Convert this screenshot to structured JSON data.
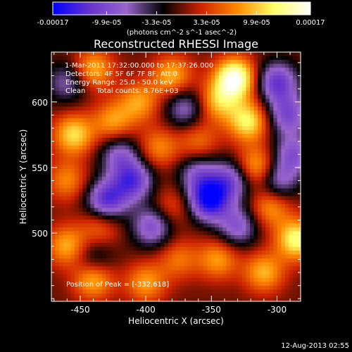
{
  "chart_data": {
    "type": "heatmap",
    "title": "Reconstructed RHESSI Image",
    "xlabel": "Heliocentric X (arcsec)",
    "ylabel": "Heliocentric Y (arcsec)",
    "xlim": [
      -472,
      -282
    ],
    "ylim": [
      448,
      638
    ],
    "xticks": [
      -450,
      -400,
      -350,
      -300
    ],
    "yticks": [
      500,
      550,
      600
    ],
    "xtick_labels": [
      "-450",
      "-400",
      "-350",
      "-300"
    ],
    "ytick_labels": [
      "500",
      "550",
      "600"
    ],
    "colorbar": {
      "range": [
        -0.00017,
        0.00017
      ],
      "ticks": [
        -0.00017,
        -9.9e-05,
        -3.3e-05,
        3.3e-05,
        9.9e-05,
        0.00017
      ],
      "tick_labels": [
        "-0.00017",
        "-9.9e-05",
        "-3.3e-05",
        "3.3e-05",
        "9.9e-05",
        "0.00017"
      ],
      "unit_label": "(photons cm^-2 s^-1 asec^-2)",
      "colormap": [
        "#0000ff",
        "#6633cc",
        "#9966cc",
        "#000000",
        "#cc2200",
        "#ff8800",
        "#ffff66",
        "#ffffff"
      ]
    },
    "annotations": {
      "time_range": "1-Mar-2011 17:32:00.000 to 17:37:26.000",
      "detectors": "Detectors: 4F 5F 6F 7F 8F, Att 0",
      "energy_range": "Energy Range: 25.0 - 50.0 keV",
      "clean_counts": "Clean     Total counts: 8.76E+03",
      "peak": "Position of Peak = [-332,618]"
    },
    "peak_position": [
      -332,
      618
    ],
    "blobs": [
      {
        "x": -332,
        "y": 618,
        "value": 0.00017
      },
      {
        "x": -322,
        "y": 585,
        "value": 0.00012
      },
      {
        "x": -345,
        "y": 600,
        "value": 9e-05
      },
      {
        "x": -380,
        "y": 620,
        "value": 9e-05
      },
      {
        "x": -405,
        "y": 600,
        "value": 8e-05
      },
      {
        "x": -440,
        "y": 625,
        "value": 9e-05
      },
      {
        "x": -455,
        "y": 575,
        "value": 0.00011
      },
      {
        "x": -425,
        "y": 585,
        "value": 8e-05
      },
      {
        "x": -390,
        "y": 565,
        "value": 7e-05
      },
      {
        "x": -360,
        "y": 570,
        "value": 6e-05
      },
      {
        "x": -315,
        "y": 550,
        "value": 0.0001
      },
      {
        "x": -305,
        "y": 520,
        "value": 8e-05
      },
      {
        "x": -285,
        "y": 495,
        "value": 0.00013
      },
      {
        "x": -310,
        "y": 470,
        "value": 9e-05
      },
      {
        "x": -345,
        "y": 480,
        "value": 8e-05
      },
      {
        "x": -375,
        "y": 480,
        "value": 6e-05
      },
      {
        "x": -400,
        "y": 462,
        "value": 8e-05
      },
      {
        "x": -440,
        "y": 465,
        "value": 0.0001
      },
      {
        "x": -460,
        "y": 490,
        "value": 9e-05
      },
      {
        "x": -435,
        "y": 505,
        "value": 6e-05
      },
      {
        "x": -380,
        "y": 520,
        "value": 5e-05
      },
      {
        "x": -460,
        "y": 540,
        "value": 7e-05
      },
      {
        "x": -300,
        "y": 615,
        "value": -0.00012
      },
      {
        "x": -292,
        "y": 590,
        "value": -0.0001
      },
      {
        "x": -352,
        "y": 525,
        "value": -0.00016
      },
      {
        "x": -335,
        "y": 540,
        "value": -0.0001
      },
      {
        "x": -410,
        "y": 540,
        "value": -0.00012
      },
      {
        "x": -430,
        "y": 525,
        "value": -0.00013
      },
      {
        "x": -395,
        "y": 505,
        "value": -0.0001
      },
      {
        "x": -330,
        "y": 505,
        "value": -9e-05
      },
      {
        "x": -300,
        "y": 540,
        "value": -9e-05
      },
      {
        "x": -360,
        "y": 545,
        "value": -8e-05
      },
      {
        "x": -460,
        "y": 615,
        "value": -7e-05
      },
      {
        "x": -420,
        "y": 560,
        "value": -8e-05
      },
      {
        "x": -370,
        "y": 595,
        "value": -8e-05
      },
      {
        "x": -288,
        "y": 560,
        "value": -9e-05
      },
      {
        "x": -440,
        "y": 480,
        "value": -6e-05
      }
    ]
  },
  "footer": {
    "timestamp": "12-Aug-2013 02:55"
  }
}
